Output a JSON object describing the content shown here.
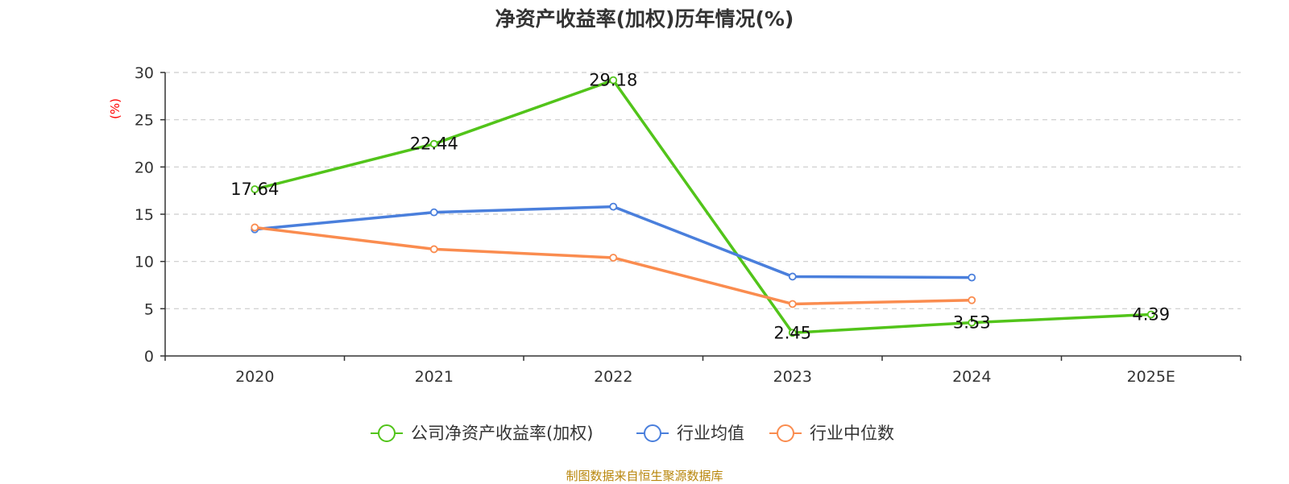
{
  "chart_data": {
    "type": "line",
    "title": "净资产收益率(加权)历年情况(%)",
    "ylabel": "(%)",
    "xlabel": "",
    "categories": [
      "2020",
      "2021",
      "2022",
      "2023",
      "2024",
      "2025E"
    ],
    "ylim": [
      0,
      30
    ],
    "yticks": [
      0,
      5,
      10,
      15,
      20,
      25,
      30
    ],
    "grid": true,
    "legend_position": "bottom-center",
    "series": [
      {
        "name": "公司净资产收益率(加权)",
        "color": "#52c41a",
        "values": [
          17.64,
          22.44,
          29.18,
          2.45,
          3.53,
          4.39
        ],
        "labels": [
          "17.64",
          "22.44",
          "29.18",
          "2.45",
          "3.53",
          "4.39"
        ]
      },
      {
        "name": "行业均值",
        "color": "#4a7fdc",
        "values": [
          13.4,
          15.2,
          15.8,
          8.4,
          8.3,
          null
        ]
      },
      {
        "name": "行业中位数",
        "color": "#fa8c4f",
        "values": [
          13.6,
          11.3,
          10.4,
          5.5,
          5.9,
          null
        ]
      }
    ]
  },
  "source": "制图数据来自恒生聚源数据库",
  "colors": {
    "grid": "#cccccc",
    "axis": "#333333",
    "ylabel": "#ff0000"
  }
}
